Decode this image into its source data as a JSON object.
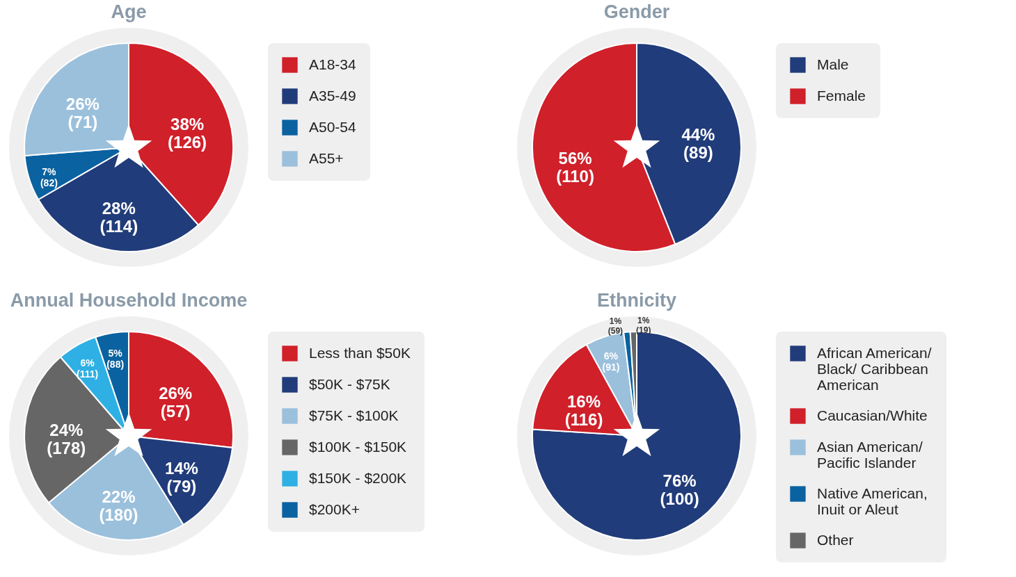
{
  "chart_data": [
    {
      "type": "pie",
      "title": "Age",
      "categories": [
        "A18-34",
        "A35-49",
        "A50-54",
        "A55+"
      ],
      "values": [
        38,
        28,
        7,
        26
      ],
      "colors": [
        "#d0202a",
        "#213c7a",
        "#0a62a0",
        "#9bc0dc"
      ],
      "value_labels": [
        "38%\n(126)",
        "28%\n(114)",
        "7%\n(82)",
        "26%\n(71)"
      ],
      "legend": "right"
    },
    {
      "type": "pie",
      "title": "Gender",
      "categories": [
        "Male",
        "Female"
      ],
      "values": [
        44,
        56
      ],
      "colors": [
        "#213c7a",
        "#d0202a"
      ],
      "value_labels": [
        "44%\n(89)",
        "56%\n(110)"
      ],
      "legend": "right"
    },
    {
      "type": "pie",
      "title": "Annual Household Income",
      "categories": [
        "Less than $50K",
        "$50K - $75K",
        "$75K - $100K",
        "$100K - $150K",
        "$150K - $200K",
        "$200K+"
      ],
      "values": [
        26,
        14,
        22,
        24,
        6,
        5
      ],
      "colors": [
        "#d0202a",
        "#213c7a",
        "#9bc0dc",
        "#666666",
        "#2eb0e4",
        "#0a62a0"
      ],
      "value_labels": [
        "26%\n(57)",
        "14%\n(79)",
        "22%\n(180)",
        "24%\n(178)",
        "6%\n(111)",
        "5%\n(88)"
      ],
      "legend": "right"
    },
    {
      "type": "pie",
      "title": "Ethnicity",
      "categories": [
        "African American/ Black/ Caribbean American",
        "Caucasian/White",
        "Asian American/ Pacific Islander",
        "Native American, Inuit or Aleut",
        "Other"
      ],
      "values": [
        76,
        16,
        6,
        1,
        1
      ],
      "colors": [
        "#213c7a",
        "#d0202a",
        "#9bc0dc",
        "#0a62a0",
        "#666666"
      ],
      "value_labels": [
        "76%\n(100)",
        "16%\n(116)",
        "6%\n(91)",
        "1%\n(59)",
        "1%\n(19)"
      ],
      "legend": "right"
    }
  ]
}
